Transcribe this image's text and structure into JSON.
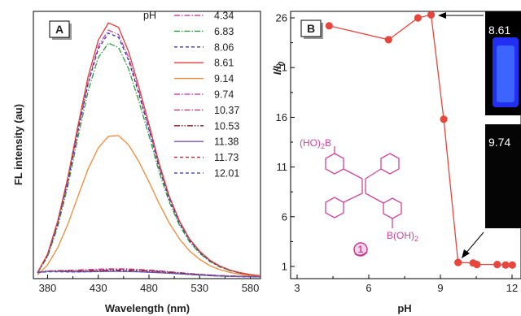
{
  "chart_data": [
    {
      "type": "line",
      "panel_label": "A",
      "xlabel": "Wavelength (nm)",
      "ylabel": "FL intensity (au)",
      "xlim": [
        366,
        590
      ],
      "xticks": [
        380,
        430,
        480,
        530,
        580
      ],
      "grid": false,
      "legend": {
        "title": "pH",
        "placement": "top-right"
      },
      "x": [
        370,
        380,
        390,
        400,
        410,
        420,
        430,
        440,
        450,
        460,
        470,
        480,
        490,
        500,
        510,
        520,
        530,
        540,
        550,
        560,
        570,
        580,
        590
      ],
      "series": [
        {
          "name": "4.34",
          "color": "#c64aa6",
          "dash": "7,2,1.5,2",
          "values": [
            0.4,
            1.6,
            3.8,
            6.8,
            10.3,
            13.6,
            16.1,
            17.2,
            16.9,
            15.3,
            13.0,
            10.4,
            7.8,
            5.6,
            3.9,
            2.7,
            1.85,
            1.25,
            0.85,
            0.58,
            0.4,
            0.28,
            0.2
          ]
        },
        {
          "name": "6.83",
          "color": "#2f9e3e",
          "dash": "7,2,1.5,2",
          "values": [
            0.38,
            1.5,
            3.6,
            6.4,
            9.8,
            13.0,
            15.3,
            16.3,
            16.0,
            14.5,
            12.3,
            9.9,
            7.4,
            5.3,
            3.7,
            2.55,
            1.75,
            1.18,
            0.8,
            0.55,
            0.38,
            0.27,
            0.19
          ]
        },
        {
          "name": "8.06",
          "color": "#3a3aa8",
          "dash": "4,3",
          "values": [
            0.4,
            1.6,
            3.8,
            6.7,
            10.2,
            13.5,
            15.9,
            17.0,
            16.7,
            15.1,
            12.8,
            10.3,
            7.7,
            5.5,
            3.85,
            2.65,
            1.82,
            1.22,
            0.83,
            0.57,
            0.39,
            0.27,
            0.19
          ]
        },
        {
          "name": "8.61",
          "color": "#e23b3b",
          "dash": "",
          "values": [
            0.42,
            1.7,
            4.0,
            7.0,
            10.6,
            14.0,
            16.5,
            17.7,
            17.4,
            15.7,
            13.3,
            10.7,
            8.0,
            5.7,
            4.0,
            2.75,
            1.9,
            1.28,
            0.87,
            0.59,
            0.41,
            0.28,
            0.2
          ]
        },
        {
          "name": "9.14",
          "color": "#f08a3c",
          "dash": "",
          "values": [
            0.26,
            0.95,
            2.15,
            3.75,
            5.7,
            7.6,
            9.05,
            9.85,
            9.9,
            9.25,
            8.1,
            6.7,
            5.2,
            3.85,
            2.75,
            1.92,
            1.33,
            0.9,
            0.62,
            0.43,
            0.3,
            0.21,
            0.15
          ]
        },
        {
          "name": "9.74",
          "color": "#d24cb0",
          "dash": "7,2,1.5,2",
          "values": [
            0.42,
            0.52,
            0.56,
            0.58,
            0.6,
            0.63,
            0.66,
            0.68,
            0.68,
            0.67,
            0.64,
            0.6,
            0.55,
            0.48,
            0.42,
            0.36,
            0.3,
            0.26,
            0.22,
            0.19,
            0.17,
            0.15,
            0.14
          ]
        },
        {
          "name": "10.37",
          "color": "#b0407a",
          "dash": "7,2,1.5,2",
          "values": [
            0.44,
            0.53,
            0.55,
            0.55,
            0.56,
            0.58,
            0.61,
            0.64,
            0.65,
            0.64,
            0.61,
            0.57,
            0.52,
            0.46,
            0.4,
            0.34,
            0.29,
            0.25,
            0.21,
            0.18,
            0.16,
            0.15,
            0.14
          ]
        },
        {
          "name": "10.53",
          "color": "#8a1f2a",
          "dash": "7,2,1.5,2,1.5,2",
          "values": [
            0.43,
            0.5,
            0.52,
            0.52,
            0.52,
            0.54,
            0.56,
            0.58,
            0.59,
            0.58,
            0.56,
            0.53,
            0.49,
            0.44,
            0.38,
            0.33,
            0.28,
            0.24,
            0.2,
            0.17,
            0.15,
            0.14,
            0.13
          ]
        },
        {
          "name": "11.38",
          "color": "#7a52b8",
          "dash": "",
          "values": [
            0.45,
            0.51,
            0.5,
            0.48,
            0.47,
            0.48,
            0.49,
            0.5,
            0.5,
            0.49,
            0.47,
            0.44,
            0.41,
            0.37,
            0.33,
            0.29,
            0.25,
            0.21,
            0.18,
            0.16,
            0.14,
            0.13,
            0.12
          ]
        },
        {
          "name": "11.73",
          "color": "#b42a3a",
          "dash": "4,3",
          "values": [
            0.43,
            0.49,
            0.49,
            0.48,
            0.48,
            0.49,
            0.51,
            0.53,
            0.53,
            0.52,
            0.5,
            0.47,
            0.43,
            0.39,
            0.35,
            0.3,
            0.26,
            0.22,
            0.19,
            0.16,
            0.14,
            0.13,
            0.12
          ]
        },
        {
          "name": "12.01",
          "color": "#4a5ab0",
          "dash": "4,3",
          "values": [
            0.41,
            0.47,
            0.47,
            0.46,
            0.46,
            0.47,
            0.49,
            0.51,
            0.51,
            0.5,
            0.48,
            0.45,
            0.42,
            0.38,
            0.34,
            0.29,
            0.25,
            0.21,
            0.18,
            0.16,
            0.14,
            0.13,
            0.12
          ]
        }
      ],
      "ylim": [
        0,
        18.5
      ]
    },
    {
      "type": "line",
      "panel_label": "B",
      "xlabel": "pH",
      "ylabel": "I/I0",
      "ylabel_main": "I/I",
      "ylabel_sub": "0",
      "xlim": [
        3,
        12
      ],
      "ylim": [
        0,
        27
      ],
      "xticks": [
        3,
        6,
        9,
        12
      ],
      "yticks": [
        1,
        6,
        11,
        16,
        21,
        26
      ],
      "grid": false,
      "color": "#e8453c",
      "x": [
        4.34,
        6.83,
        8.06,
        8.61,
        9.14,
        9.74,
        10.37,
        10.53,
        11.38,
        11.73,
        12.01
      ],
      "values": [
        25.2,
        23.8,
        26.0,
        26.3,
        15.8,
        1.4,
        1.35,
        1.2,
        1.2,
        1.15,
        1.15
      ],
      "insets": [
        {
          "label": "8.61",
          "glow_color": "#3a46ff"
        },
        {
          "label": "9.74",
          "glow_color": "#111111"
        }
      ],
      "structure": {
        "top_label": "(HO)",
        "top_sub": "2",
        "top_tail": "B",
        "bottom_label": "B(OH)",
        "bottom_sub": "2",
        "compound_number": "1",
        "color": "#d0449a"
      }
    }
  ]
}
